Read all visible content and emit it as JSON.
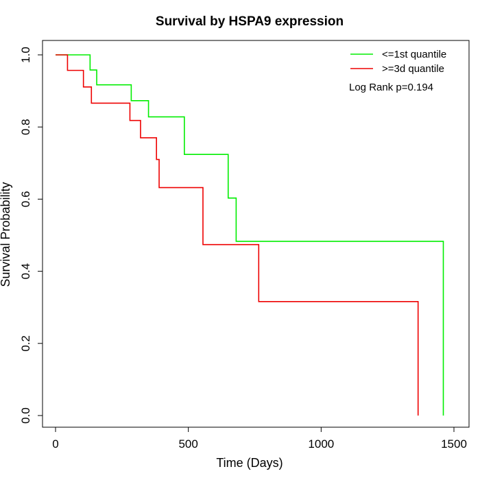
{
  "chart_data": {
    "type": "line",
    "title": "Survival by HSPA9 expression",
    "xlabel": "Time (Days)",
    "ylabel": "Survival Probability",
    "xlim": [
      0,
      1500
    ],
    "ylim": [
      0,
      1
    ],
    "x_ticks": [
      "0",
      "500",
      "1000",
      "1500"
    ],
    "y_ticks": [
      "0.0",
      "0.2",
      "0.4",
      "0.6",
      "0.8",
      "1.0"
    ],
    "legend_position": "top-right",
    "annotation": "Log Rank p=0.194",
    "series": [
      {
        "name": "<=1st quantile",
        "color": "#00ee00",
        "step": true,
        "x": [
          0,
          130,
          155,
          285,
          350,
          485,
          650,
          680,
          1460,
          1460
        ],
        "y": [
          1.0,
          0.958,
          0.917,
          0.873,
          0.828,
          0.724,
          0.603,
          0.483,
          0.483,
          0.0
        ]
      },
      {
        "name": ">=3d quantile",
        "color": "#ee0000",
        "step": true,
        "x": [
          0,
          45,
          105,
          135,
          280,
          320,
          380,
          390,
          555,
          765,
          1365,
          1365
        ],
        "y": [
          1.0,
          0.957,
          0.911,
          0.866,
          0.818,
          0.77,
          0.71,
          0.632,
          0.474,
          0.316,
          0.316,
          0.0
        ]
      }
    ]
  }
}
